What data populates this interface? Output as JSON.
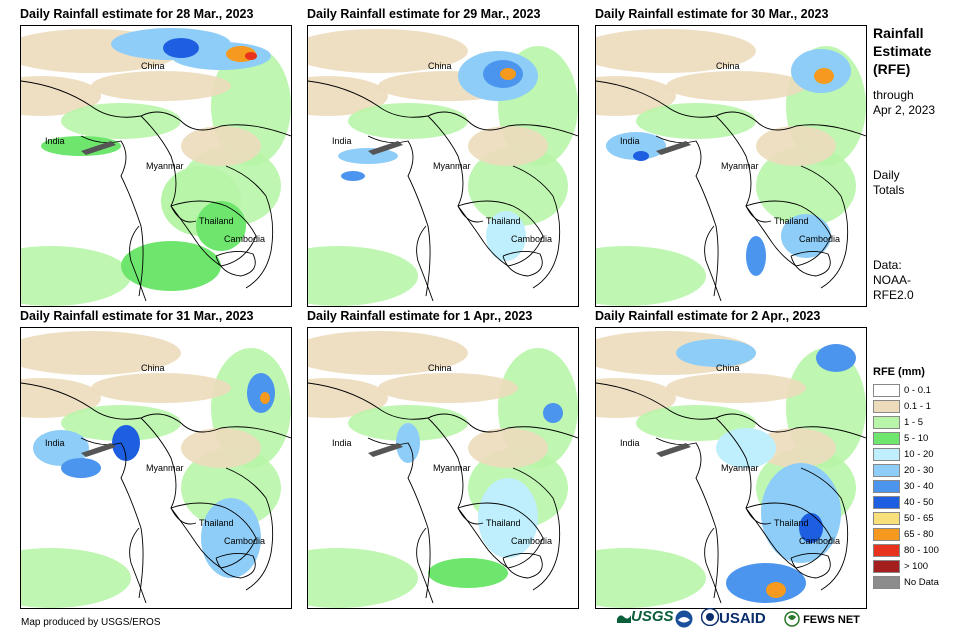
{
  "panels": [
    {
      "title": "Daily Rainfall estimate for 28 Mar., 2023"
    },
    {
      "title": "Daily Rainfall estimate for 29 Mar., 2023"
    },
    {
      "title": "Daily Rainfall estimate for 30 Mar., 2023"
    },
    {
      "title": "Daily Rainfall estimate for 31 Mar., 2023"
    },
    {
      "title": "Daily Rainfall estimate for 1 Apr., 2023"
    },
    {
      "title": "Daily Rainfall estimate for 2 Apr., 2023"
    }
  ],
  "places": {
    "china": "China",
    "india": "India",
    "myanmar": "Myanmar",
    "thailand": "Thailand",
    "cambodia": "Cambodia"
  },
  "sidebar": {
    "title_lines": [
      "Rainfall",
      "Estimate",
      "(RFE)"
    ],
    "through_lines": [
      "through",
      "Apr 2, 2023"
    ],
    "totals_lines": [
      "Daily",
      "Totals"
    ],
    "data_lines": [
      "Data:",
      "NOAA-",
      "RFE2.0"
    ]
  },
  "legend": {
    "title": "RFE (mm)",
    "items": [
      {
        "label": "0 - 0.1",
        "color": "#ffffff"
      },
      {
        "label": "0.1 - 1",
        "color": "#ecdcbc"
      },
      {
        "label": "1 - 5",
        "color": "#b8f5a8"
      },
      {
        "label": "5 - 10",
        "color": "#6ee66e"
      },
      {
        "label": "10 - 20",
        "color": "#bfeffc"
      },
      {
        "label": "20 - 30",
        "color": "#8ecdf7"
      },
      {
        "label": "30 - 40",
        "color": "#4b95ee"
      },
      {
        "label": "40 - 50",
        "color": "#1e5ee0"
      },
      {
        "label": "50 - 65",
        "color": "#f7e07a"
      },
      {
        "label": "65 - 80",
        "color": "#f59a1e"
      },
      {
        "label": "80 - 100",
        "color": "#e8321e"
      },
      {
        "label": "> 100",
        "color": "#a51e1e"
      },
      {
        "label": "No Data",
        "color": "#8c8c8c"
      }
    ]
  },
  "footer": {
    "credit": "Map produced by USGS/EROS",
    "logos": [
      "USGS",
      "USAID",
      "FEWS NET"
    ]
  }
}
